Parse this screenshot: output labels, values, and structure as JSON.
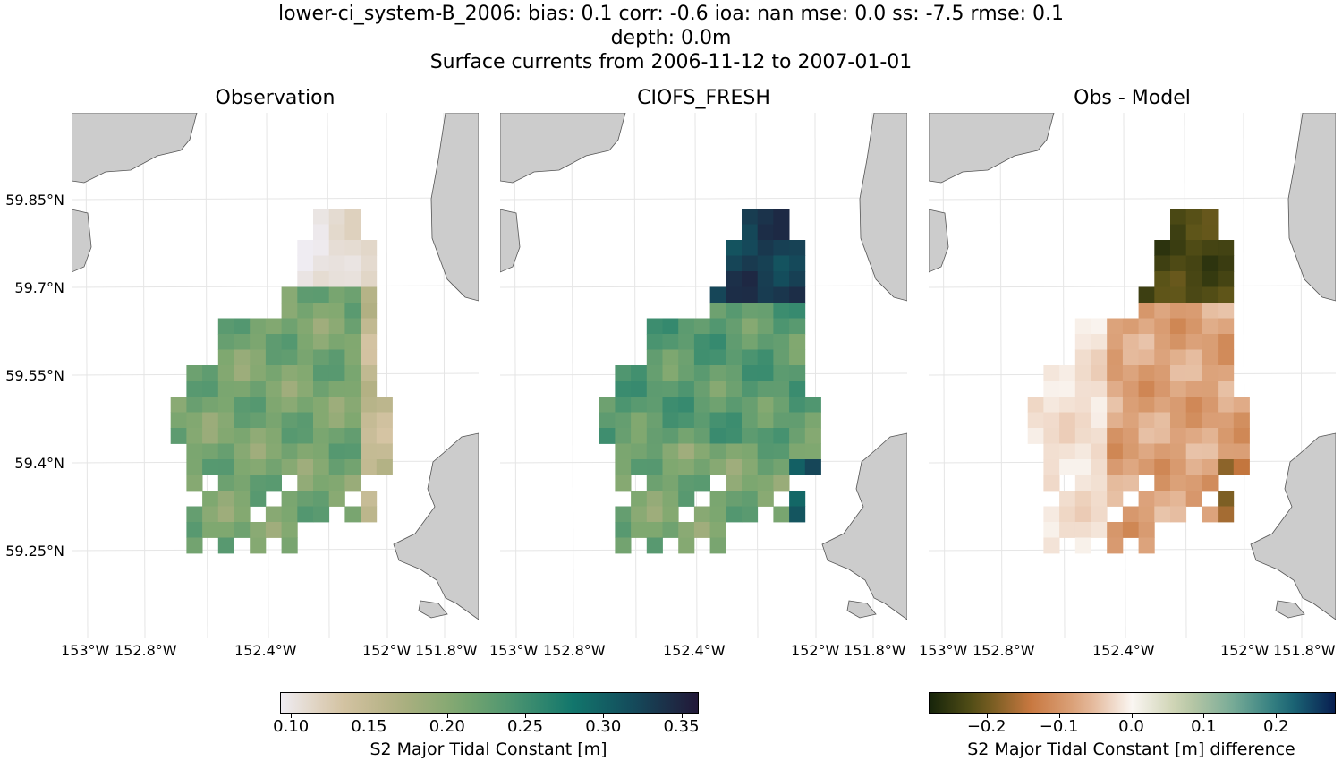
{
  "figure": {
    "title_line1": "lower-ci_system-B_2006: bias: 0.1  corr: -0.6  ioa: nan  mse: 0.0  ss: -7.5  rmse: 0.1",
    "title_line2": "depth: 0.0m",
    "title_line3": "Surface currents from 2006-11-12 to 2007-01-01"
  },
  "colors": {
    "land": "#cccccc",
    "coast": "#555555",
    "grid": "#e5e5e5",
    "ocean": "#ffffff"
  },
  "panels": [
    {
      "title": "Observation",
      "colormap": "rain"
    },
    {
      "title": "CIOFS_FRESH",
      "colormap": "rain"
    },
    {
      "title": "Obs - Model",
      "colormap": "diff"
    }
  ],
  "axes": {
    "lat_ticks": [
      "59.85°N",
      "59.7°N",
      "59.55°N",
      "59.4°N",
      "59.25°N"
    ],
    "lon_ticks": [
      "153°W",
      "152.8°W",
      "152.4°W",
      "152°W",
      "151.8°W"
    ]
  },
  "colorbars": {
    "left": {
      "ticks": [
        "0.10",
        "0.15",
        "0.20",
        "0.25",
        "0.30",
        "0.35"
      ],
      "label": "S2 Major Tidal Constant [m]",
      "range": [
        0.093,
        0.36
      ],
      "tick_values": [
        0.1,
        0.15,
        0.2,
        0.25,
        0.3,
        0.35
      ]
    },
    "right": {
      "ticks": [
        "−0.2",
        "−0.1",
        "0.0",
        "0.1",
        "0.2"
      ],
      "label": "S2 Major Tidal Constant [m] difference",
      "range": [
        -0.28,
        0.28
      ],
      "tick_values": [
        -0.2,
        -0.1,
        0.0,
        0.1,
        0.2
      ]
    }
  }
}
